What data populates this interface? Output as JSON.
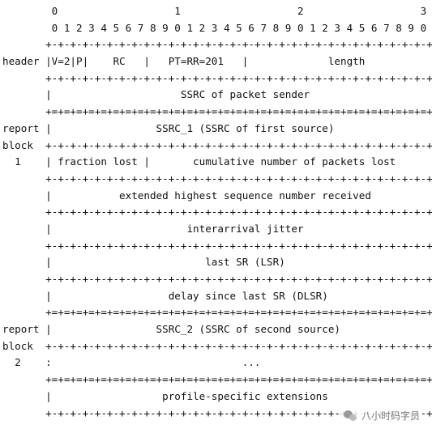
{
  "diagram": {
    "lines": [
      "        0                   1                   2                   3",
      "        0 1 2 3 4 5 6 7 8 9 0 1 2 3 4 5 6 7 8 9 0 1 2 3 4 5 6 7 8 9 0 1",
      "       +-+-+-+-+-+-+-+-+-+-+-+-+-+-+-+-+-+-+-+-+-+-+-+-+-+-+-+-+-+-+-+-+",
      "header |V=2|P|    RC   |   PT=RR=201   |             length            |",
      "       +-+-+-+-+-+-+-+-+-+-+-+-+-+-+-+-+-+-+-+-+-+-+-+-+-+-+-+-+-+-+-+-+",
      "       |                     SSRC of packet sender                     |",
      "       +=+=+=+=+=+=+=+=+=+=+=+=+=+=+=+=+=+=+=+=+=+=+=+=+=+=+=+=+=+=+=+=+",
      "report |                 SSRC_1 (SSRC of first source)                 |",
      "block  +-+-+-+-+-+-+-+-+-+-+-+-+-+-+-+-+-+-+-+-+-+-+-+-+-+-+-+-+-+-+-+-+",
      "  1    | fraction lost |       cumulative number of packets lost       |",
      "       +-+-+-+-+-+-+-+-+-+-+-+-+-+-+-+-+-+-+-+-+-+-+-+-+-+-+-+-+-+-+-+-+",
      "       |           extended highest sequence number received           |",
      "       +-+-+-+-+-+-+-+-+-+-+-+-+-+-+-+-+-+-+-+-+-+-+-+-+-+-+-+-+-+-+-+-+",
      "       |                      interarrival jitter                      |",
      "       +-+-+-+-+-+-+-+-+-+-+-+-+-+-+-+-+-+-+-+-+-+-+-+-+-+-+-+-+-+-+-+-+",
      "       |                         last SR (LSR)                         |",
      "       +-+-+-+-+-+-+-+-+-+-+-+-+-+-+-+-+-+-+-+-+-+-+-+-+-+-+-+-+-+-+-+-+",
      "       |                   delay since last SR (DLSR)                  |",
      "       +=+=+=+=+=+=+=+=+=+=+=+=+=+=+=+=+=+=+=+=+=+=+=+=+=+=+=+=+=+=+=+=+",
      "report |                 SSRC_2 (SSRC of second source)                |",
      "block  +-+-+-+-+-+-+-+-+-+-+-+-+-+-+-+-+-+-+-+-+-+-+-+-+-+-+-+-+-+-+-+-+",
      "  2    :                               ...                             :",
      "       +=+=+=+=+=+=+=+=+=+=+=+=+=+=+=+=+=+=+=+=+=+=+=+=+=+=+=+=+=+=+=+=+",
      "       |                  profile-specific extensions                  |",
      "       +-+-+-+-+-+-+-+-+-+-+-+-+-+-+-+-+-+-+-+-+-+-+-+-+-+-+-+-+-+-+-+-+"
    ]
  },
  "watermark": {
    "text": "八小时码字员"
  }
}
